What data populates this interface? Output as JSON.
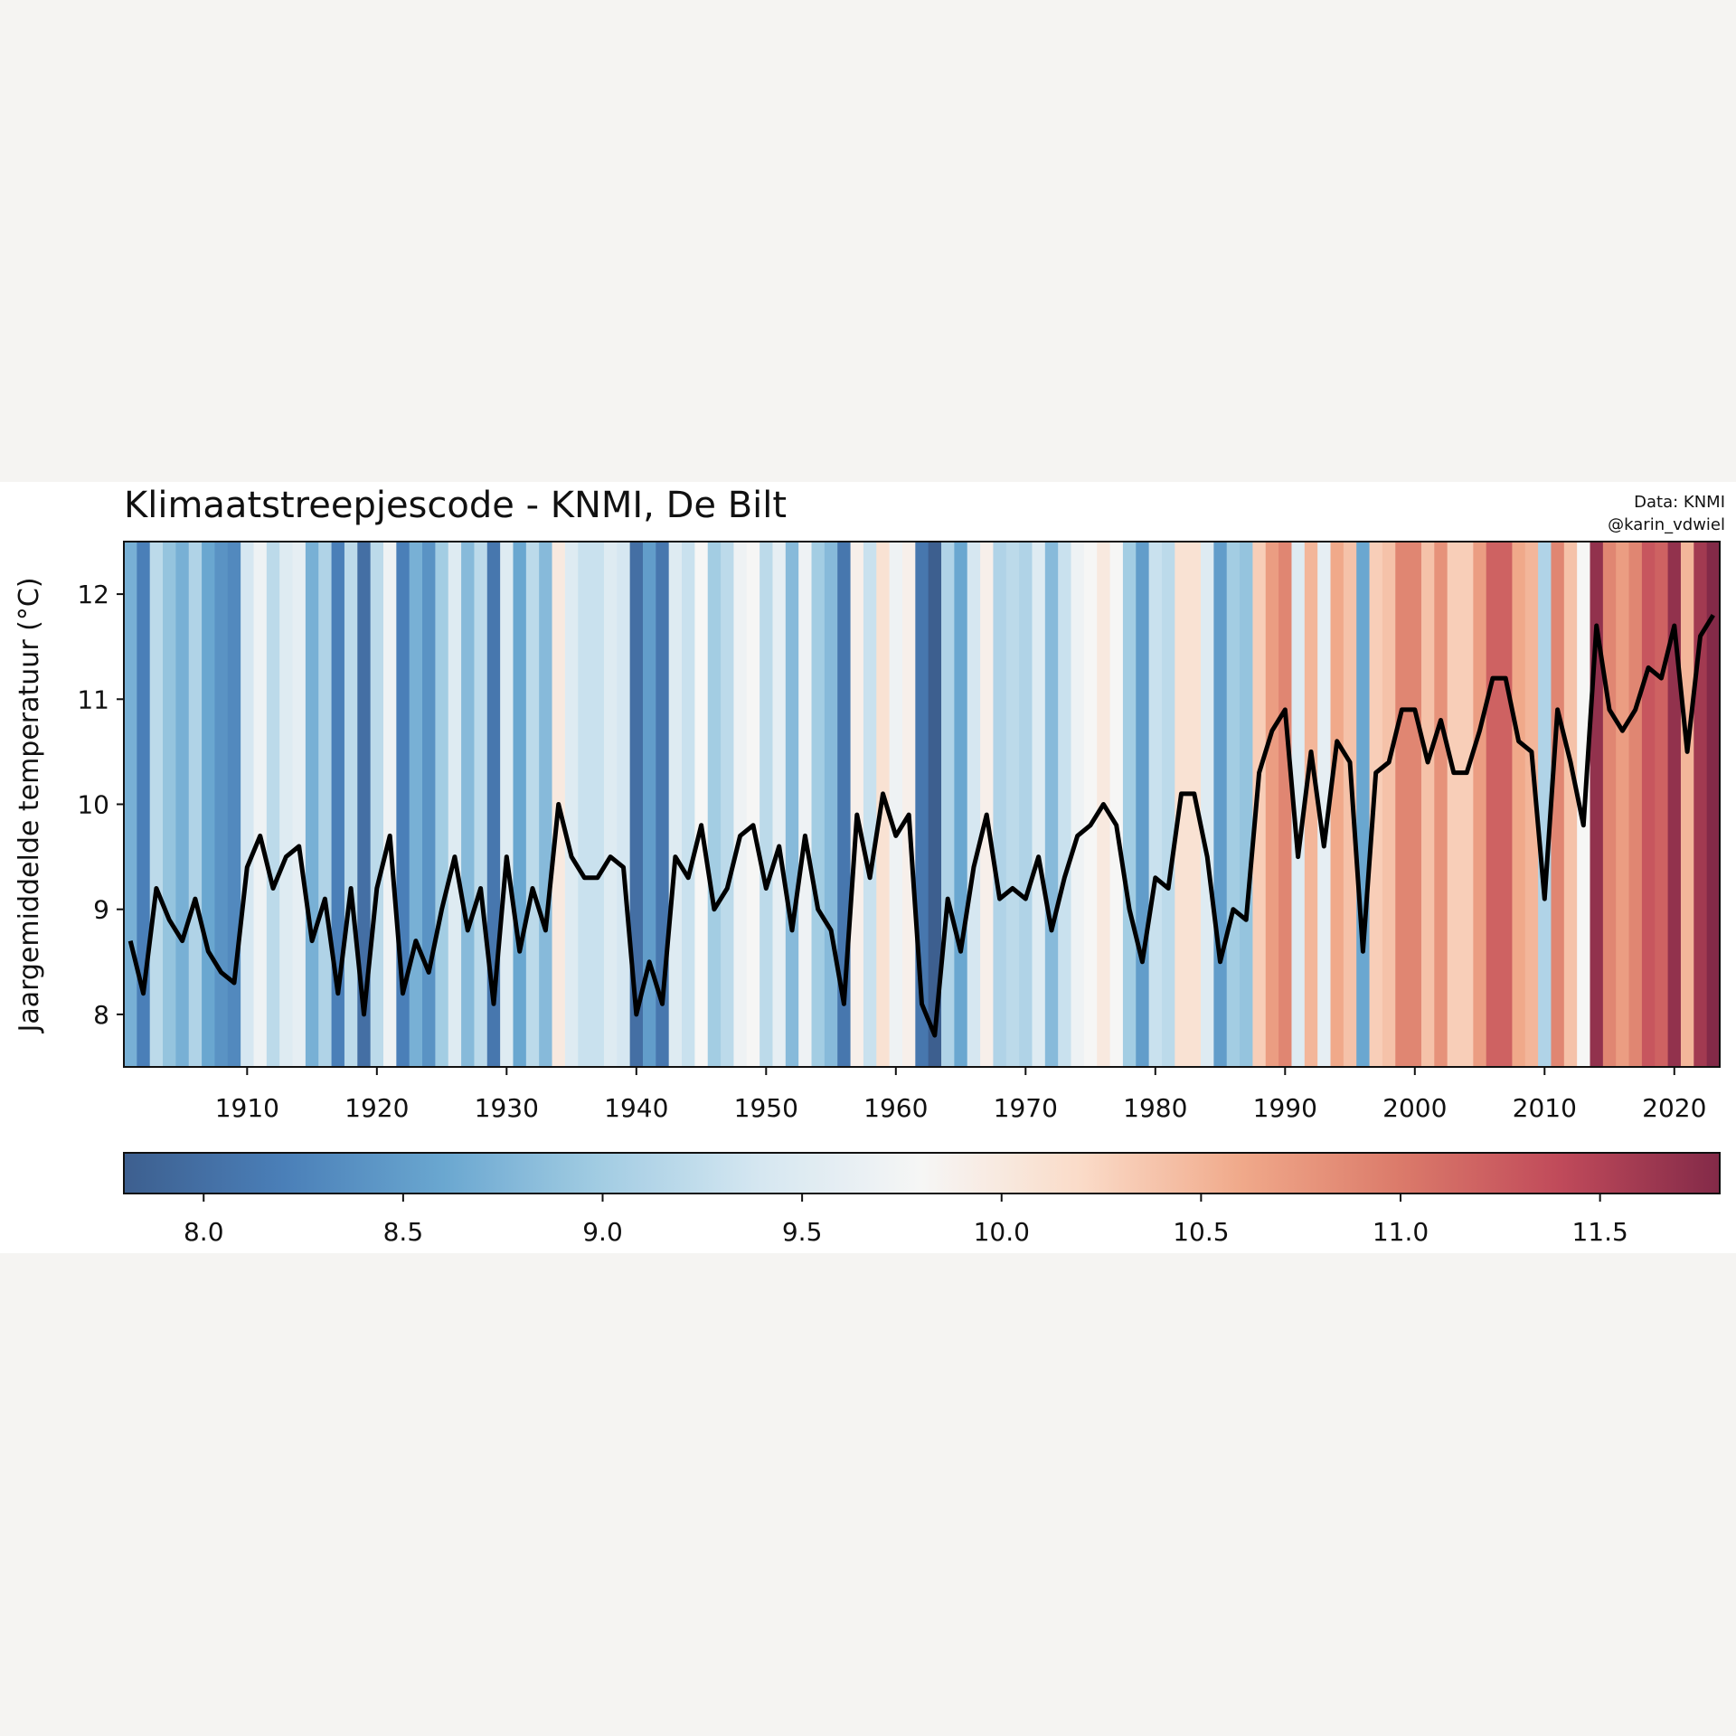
{
  "chart_data": {
    "type": "bar",
    "title": "Klimaatstreepjescode - KNMI, De Bilt",
    "credits": [
      "Data: KNMI",
      "@karin_vdwiel"
    ],
    "xlabel": "",
    "ylabel": "Jaargemiddelde temperatuur (°C)",
    "ylim": [
      7.5,
      12.5
    ],
    "yticks": [
      8,
      9,
      10,
      11,
      12
    ],
    "xticks": [
      1910,
      1920,
      1930,
      1940,
      1950,
      1960,
      1970,
      1980,
      1990,
      2000,
      2010,
      2020
    ],
    "x_start": 1901,
    "grid": false,
    "colormap": "RdBu_r",
    "color_range": [
      7.8,
      11.8
    ],
    "colorbar_ticks": [
      "8.0",
      "8.5",
      "9.0",
      "9.5",
      "10.0",
      "10.5",
      "11.0",
      "11.5"
    ],
    "line_color": "#000000",
    "values": [
      8.7,
      8.2,
      9.2,
      8.9,
      8.7,
      9.1,
      8.6,
      8.4,
      8.3,
      9.4,
      9.7,
      9.2,
      9.5,
      9.6,
      8.7,
      9.1,
      8.2,
      9.2,
      8.0,
      9.2,
      9.7,
      8.2,
      8.7,
      8.4,
      9.0,
      9.5,
      8.8,
      9.2,
      8.1,
      9.5,
      8.6,
      9.2,
      8.8,
      10.0,
      9.5,
      9.3,
      9.3,
      9.5,
      9.4,
      8.0,
      8.5,
      8.1,
      9.5,
      9.3,
      9.8,
      9.0,
      9.2,
      9.7,
      9.8,
      9.2,
      9.6,
      8.8,
      9.7,
      9.0,
      8.8,
      8.1,
      9.9,
      9.3,
      10.1,
      9.7,
      9.9,
      8.1,
      7.8,
      9.1,
      8.6,
      9.4,
      9.9,
      9.1,
      9.2,
      9.1,
      9.5,
      8.8,
      9.3,
      9.7,
      9.8,
      10.0,
      9.8,
      9.0,
      8.5,
      9.3,
      9.2,
      10.1,
      10.1,
      9.5,
      8.5,
      9.0,
      8.9,
      10.3,
      10.7,
      10.9,
      9.5,
      10.5,
      9.6,
      10.6,
      10.4,
      8.6,
      10.3,
      10.4,
      10.9,
      10.9,
      10.4,
      10.8,
      10.3,
      10.3,
      10.7,
      11.2,
      11.2,
      10.6,
      10.5,
      9.1,
      10.9,
      10.4,
      9.8,
      11.7,
      10.9,
      10.7,
      10.9,
      11.3,
      11.2,
      11.7,
      10.5,
      11.6,
      11.8
    ]
  }
}
